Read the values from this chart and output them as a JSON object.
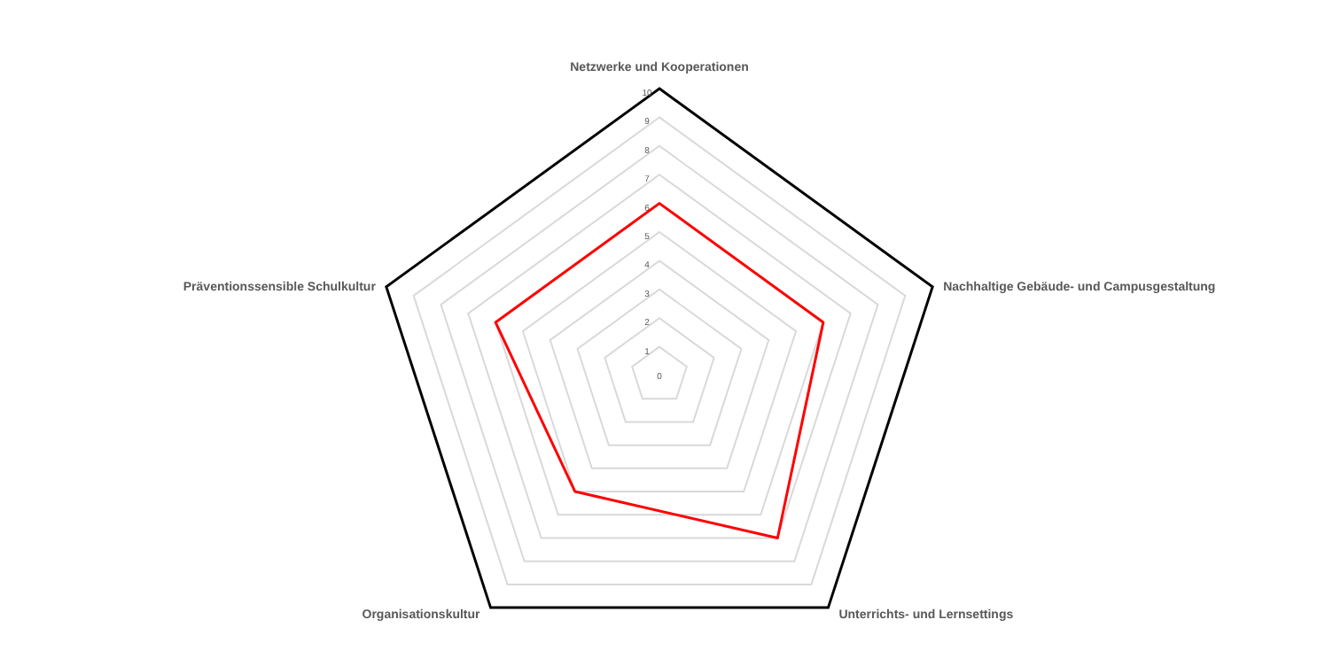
{
  "chart_data": {
    "type": "radar",
    "categories": [
      "Netzwerke und Kooperationen",
      "Nachhaltige Gebäude- und Campusgestaltung",
      "Unterrichts- und Lernsettings",
      "Organisationskultur",
      "Präventionssensible Schulkultur"
    ],
    "series": [
      {
        "color": "#ff0000",
        "values": [
          6,
          6,
          7,
          5,
          6
        ]
      }
    ],
    "ylim": [
      0,
      10
    ],
    "yticks": [
      0,
      1,
      2,
      3,
      4,
      5,
      6,
      7,
      8,
      9,
      10
    ],
    "grid": true
  }
}
